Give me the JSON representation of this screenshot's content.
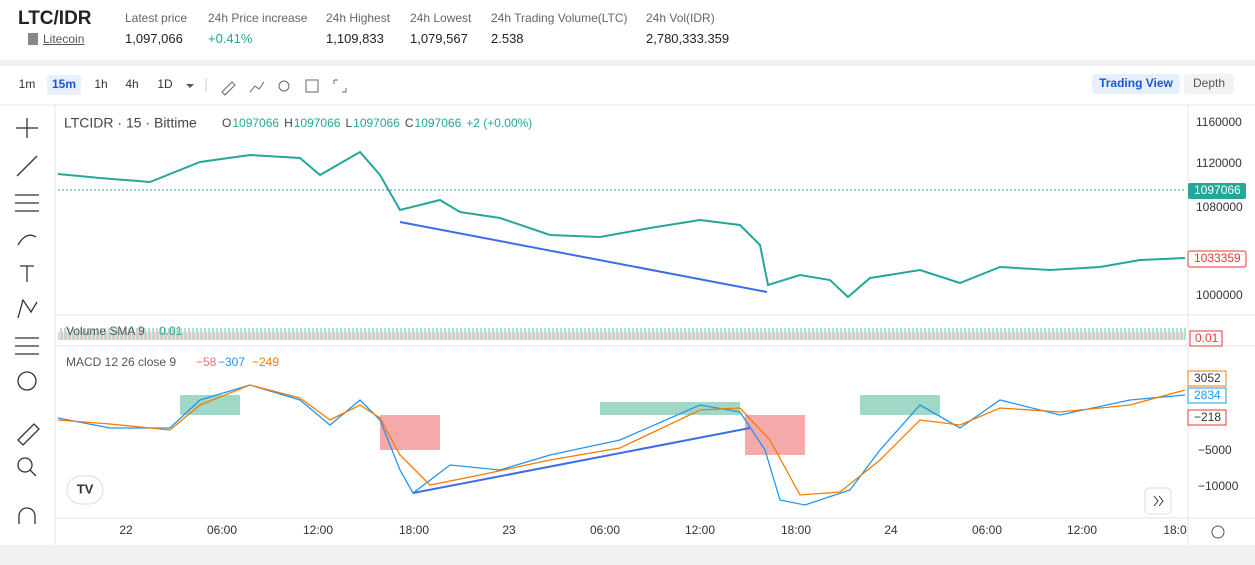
{
  "header": {
    "pair": "LTC/IDR",
    "coin": "Litecoin",
    "stats": [
      {
        "label": "Latest price",
        "value": "1,097,066"
      },
      {
        "label": "24h Price increase",
        "value": "+0.41%"
      },
      {
        "label": "24h Highest",
        "value": "1,109,833"
      },
      {
        "label": "24h Lowest",
        "value": "1,079,567"
      },
      {
        "label": "24h Trading Volume(LTC)",
        "value": "2.538"
      },
      {
        "label": "24h Vol(IDR)",
        "value": "2,780,333.359"
      }
    ]
  },
  "toolbar": {
    "intervals": [
      "1m",
      "15m",
      "1h",
      "4h",
      "1D"
    ],
    "views": [
      "Trading View",
      "Depth"
    ]
  },
  "chart": {
    "legend": "LTCIDR · 15 · Bittime",
    "ohlc": [
      {
        "label": "O",
        "value": "1097066"
      },
      {
        "label": "H",
        "value": "1097066"
      },
      {
        "label": "L",
        "value": "1097066"
      },
      {
        "label": "C",
        "value": "1097066"
      }
    ],
    "change": "+2 (+0.00%)",
    "price_axis": [
      "1160000",
      "1120000",
      "1080000",
      "1000000"
    ],
    "price_tags": [
      "1097066",
      "1033359"
    ],
    "volume": {
      "label": "Volume SMA 9",
      "value": "0.01",
      "tag": "0.01"
    },
    "macd": {
      "label": "MACD 12 26 close 9",
      "values": [
        "−58",
        "−307",
        "−249"
      ],
      "axis": [
        "−5000",
        "−10000"
      ],
      "tags": [
        "3052",
        "2834",
        "−218"
      ]
    },
    "x_axis": [
      "22",
      "06:00",
      "12:00",
      "18:00",
      "23",
      "06:00",
      "12:00",
      "18:00",
      "24",
      "06:00",
      "12:00",
      "18:0"
    ]
  }
}
